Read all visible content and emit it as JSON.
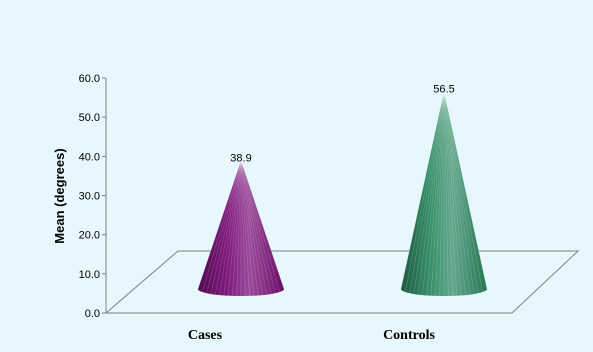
{
  "chart_data": {
    "type": "bar",
    "style": "3d-cone",
    "categories": [
      "Cases",
      "Controls"
    ],
    "values": [
      38.9,
      56.5
    ],
    "data_labels": [
      "38.9",
      "56.5"
    ],
    "title": "",
    "xlabel": "",
    "ylabel": "Mean (degrees)",
    "ylim": [
      0,
      60
    ],
    "yticks": [
      "0.0",
      "10.0",
      "20.0",
      "30.0",
      "40.0",
      "50.0",
      "60.0"
    ],
    "grid": false,
    "legend": "none",
    "colors": {
      "background": "#e6f7fd",
      "cases": "#7a0f78",
      "controls": "#2e8b63",
      "axis": "#808080"
    }
  }
}
